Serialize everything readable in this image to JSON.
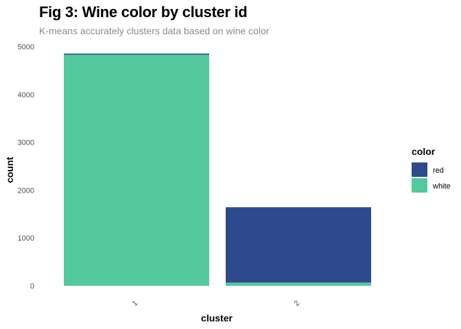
{
  "chart_data": {
    "type": "bar",
    "stacked": true,
    "title": "Fig 3: Wine color by cluster id",
    "subtitle": "K-means accurately clusters data based on wine color",
    "xlabel": "cluster",
    "ylabel": "count",
    "categories": [
      "1",
      "2"
    ],
    "series": [
      {
        "name": "red",
        "color": "#2c4a8c",
        "values": [
          24,
          1575
        ]
      },
      {
        "name": "white",
        "color": "#54c99e",
        "values": [
          4830,
          68
        ]
      }
    ],
    "ylim": [
      0,
      5000
    ],
    "yticks": [
      "0",
      "1000",
      "2000",
      "3000",
      "4000",
      "5000"
    ],
    "grid": false,
    "legend": {
      "title": "color",
      "position": "right"
    }
  }
}
